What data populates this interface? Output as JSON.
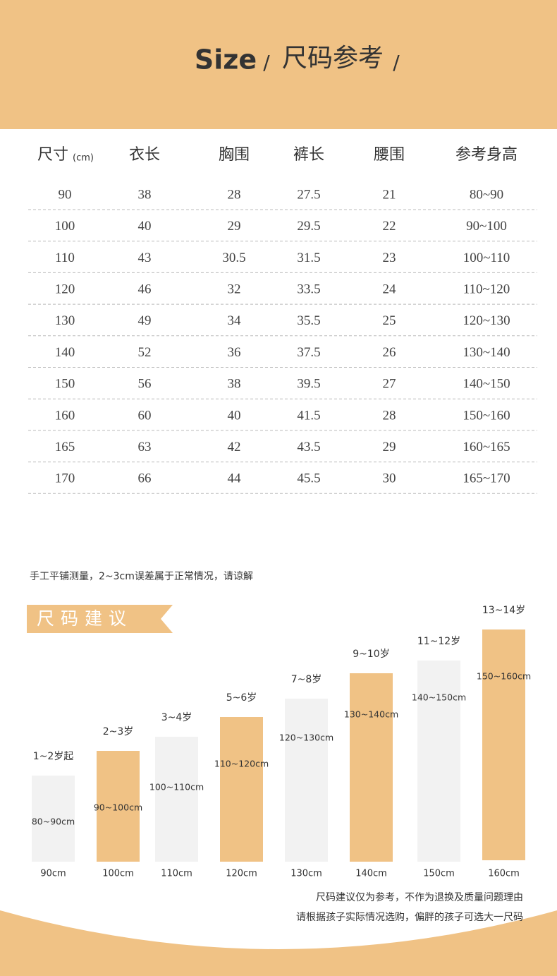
{
  "header": {
    "title_en": "Size",
    "title_cn": "尺码参考",
    "slash": "/"
  },
  "table": {
    "headers": [
      "尺寸",
      "衣长",
      "胸围",
      "裤长",
      "腰围",
      "参考身高"
    ],
    "unit": "(cm)",
    "rows": [
      [
        "90",
        "38",
        "28",
        "27.5",
        "21",
        "80~90"
      ],
      [
        "100",
        "40",
        "29",
        "29.5",
        "22",
        "90~100"
      ],
      [
        "110",
        "43",
        "30.5",
        "31.5",
        "23",
        "100~110"
      ],
      [
        "120",
        "46",
        "32",
        "33.5",
        "24",
        "110~120"
      ],
      [
        "130",
        "49",
        "34",
        "35.5",
        "25",
        "120~130"
      ],
      [
        "140",
        "52",
        "36",
        "37.5",
        "26",
        "130~140"
      ],
      [
        "150",
        "56",
        "38",
        "39.5",
        "27",
        "140~150"
      ],
      [
        "160",
        "60",
        "40",
        "41.5",
        "28",
        "150~160"
      ],
      [
        "165",
        "63",
        "42",
        "43.5",
        "29",
        "160~165"
      ],
      [
        "170",
        "66",
        "44",
        "45.5",
        "30",
        "165~170"
      ]
    ]
  },
  "note": "手工平铺测量，2~3cm误差属于正常情况，请谅解",
  "section_title": "尺码建议",
  "suggestions": [
    {
      "age": "1~2岁起",
      "range": "80~90cm",
      "size": "90cm"
    },
    {
      "age": "2~3岁",
      "range": "90~100cm",
      "size": "100cm"
    },
    {
      "age": "3~4岁",
      "range": "100~110cm",
      "size": "110cm"
    },
    {
      "age": "5~6岁",
      "range": "110~120cm",
      "size": "120cm"
    },
    {
      "age": "7~8岁",
      "range": "120~130cm",
      "size": "130cm"
    },
    {
      "age": "9~10岁",
      "range": "130~140cm",
      "size": "140cm"
    },
    {
      "age": "11~12岁",
      "range": "140~150cm",
      "size": "150cm"
    },
    {
      "age": "13~14岁",
      "range": "150~160cm",
      "size": "160cm"
    }
  ],
  "footer": [
    "尺码建议仅为参考，不作为退换及质量问题理由",
    "请根据孩子实际情况选购，偏胖的孩子可选大一尺码"
  ]
}
